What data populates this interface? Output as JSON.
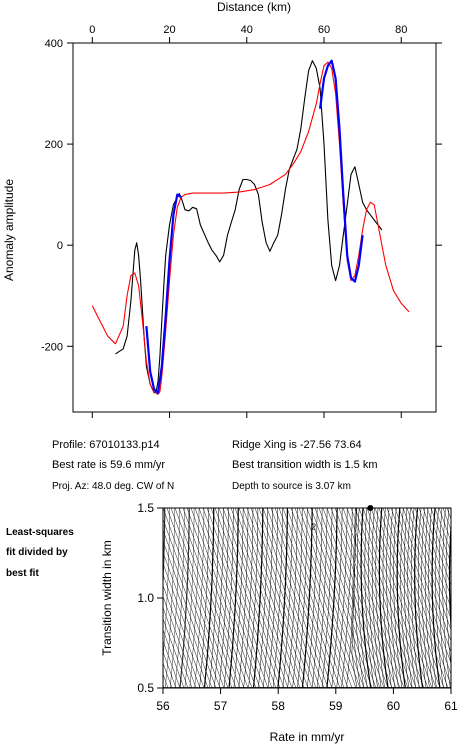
{
  "chart_data": [
    {
      "type": "line",
      "xlabel": "Distance (km)",
      "ylabel": "Anomaly amplitude",
      "xlim": [
        -5,
        89
      ],
      "ylim": [
        -330,
        400
      ],
      "x_ticks": [
        0,
        20,
        40,
        60,
        80
      ],
      "y_ticks": [
        -200,
        0,
        200,
        400
      ],
      "x_axis_position": "top",
      "grid": false,
      "series": [
        {
          "color": "#000000",
          "role": "observed",
          "x": [
            6,
            8,
            9,
            10,
            11,
            11.5,
            12,
            12.5,
            13,
            13.5,
            14,
            15,
            16,
            16.5,
            17,
            17.5,
            18,
            18.5,
            19,
            20,
            21,
            22,
            22.5,
            23,
            24,
            25,
            26,
            27,
            28,
            30,
            31,
            32,
            33,
            34,
            35,
            36,
            37,
            38,
            39,
            40,
            41,
            42,
            43,
            44,
            45,
            46,
            47,
            48,
            49,
            50,
            51,
            52,
            53,
            54,
            55,
            56,
            57,
            58,
            59,
            60,
            61,
            62,
            63,
            64,
            65,
            66,
            67,
            68,
            69,
            70,
            71,
            72,
            73,
            74,
            75
          ],
          "y": [
            -215,
            -205,
            -180,
            -110,
            -10,
            5,
            -20,
            -70,
            -130,
            -190,
            -240,
            -275,
            -292,
            -290,
            -270,
            -220,
            -150,
            -80,
            -20,
            40,
            80,
            95,
            102,
            95,
            70,
            68,
            75,
            72,
            40,
            5,
            -10,
            -20,
            -33,
            -20,
            20,
            45,
            70,
            110,
            130,
            130,
            128,
            120,
            100,
            45,
            5,
            -12,
            5,
            20,
            60,
            110,
            150,
            170,
            190,
            230,
            290,
            345,
            365,
            350,
            310,
            200,
            50,
            -40,
            -70,
            -40,
            20,
            80,
            140,
            155,
            120,
            85,
            70,
            60,
            50,
            40,
            30
          ],
          "note": "observed profile (approximate shape)"
        },
        {
          "color": "#ff0000",
          "role": "model",
          "x": [
            0,
            2,
            4,
            6,
            8,
            9,
            10,
            11,
            12,
            13,
            14,
            15,
            16,
            17,
            17.5,
            18,
            19,
            20,
            21,
            22,
            23,
            24,
            26,
            28,
            30,
            34,
            38,
            42,
            46,
            50,
            52,
            54,
            56,
            58,
            59,
            60,
            61,
            62,
            63,
            64,
            65,
            66,
            67,
            68,
            69,
            70,
            71,
            72,
            73,
            74,
            75,
            76,
            78,
            80,
            82
          ],
          "y": [
            -120,
            -150,
            -180,
            -195,
            -160,
            -100,
            -60,
            -55,
            -80,
            -150,
            -230,
            -275,
            -290,
            -295,
            -290,
            -260,
            -170,
            -70,
            20,
            75,
            95,
            100,
            103,
            103,
            103,
            103,
            105,
            110,
            120,
            140,
            160,
            185,
            225,
            280,
            320,
            355,
            362,
            350,
            300,
            200,
            80,
            -30,
            -70,
            -60,
            -20,
            30,
            70,
            85,
            80,
            40,
            0,
            -40,
            -90,
            -115,
            -132
          ]
        },
        {
          "color": "#0000ff",
          "role": "fit-window",
          "x": [
            14,
            15,
            16,
            17,
            18,
            19,
            20,
            21,
            22,
            23
          ],
          "y": [
            -160,
            -250,
            -285,
            -292,
            -240,
            -140,
            -30,
            60,
            100,
            95
          ]
        },
        {
          "color": "#0000ff",
          "role": "fit-window",
          "x": [
            59,
            60,
            61,
            62,
            63,
            64,
            65,
            66,
            67,
            68,
            69,
            70
          ],
          "y": [
            270,
            330,
            355,
            365,
            330,
            230,
            100,
            -20,
            -65,
            -72,
            -40,
            20
          ]
        }
      ]
    },
    {
      "type": "contour",
      "xlabel": "Rate in mm/yr",
      "ylabel": "Transition width in km",
      "xlim": [
        56,
        61
      ],
      "ylim": [
        0.5,
        1.5
      ],
      "x_ticks": [
        56,
        57,
        58,
        59,
        60,
        61
      ],
      "y_ticks": [
        0.5,
        1.0,
        1.5
      ],
      "contour_label": "2",
      "best_fit_marker": {
        "x": 59.6,
        "y": 1.5
      },
      "minimum_valley": {
        "rate_at_top": 59.35,
        "rate_at_bottom": 59.25,
        "width_of_min": 1.0
      }
    }
  ],
  "info": {
    "profile": "Profile: 67010133.p14",
    "best_rate": "Best rate is 59.6 mm/yr",
    "proj_az": "Proj. Az: 48.0 deg. CW of N",
    "ridge_xing": "Ridge Xing is -27.56 73.64",
    "best_transition": "Best transition width is 1.5 km",
    "depth": "Depth to source is   3.07 km"
  },
  "side_note": [
    "Least-squares",
    "fit divided by",
    "best fit"
  ]
}
